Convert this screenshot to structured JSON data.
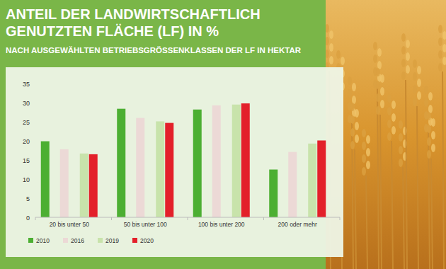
{
  "chart_data": {
    "type": "bar",
    "title": "ANTEIL DER LANDWIRTSCHAFTLICH GENUTZTEN FLÄCHE (LF) IN %",
    "subtitle": "NACH AUSGEWÄHLTEN BETRIEBSGRÖSSENKLASSEN DER LF IN HEKTAR",
    "categories": [
      "20 bis unter 50",
      "50 bis unter 100",
      "100 bis unter 200",
      "200 oder mehr"
    ],
    "series": [
      {
        "name": "2010",
        "color": "#4caf32",
        "values": [
          19.9,
          28.4,
          28.2,
          12.5
        ]
      },
      {
        "name": "2016",
        "color": "#ecd9d6",
        "values": [
          17.8,
          26.0,
          29.3,
          17.1
        ]
      },
      {
        "name": "2019",
        "color": "#c8e3ab",
        "values": [
          16.7,
          25.1,
          29.5,
          19.3
        ]
      },
      {
        "name": "2020",
        "color": "#e3202a",
        "values": [
          16.5,
          24.7,
          29.8,
          20.1
        ]
      }
    ],
    "ylim": [
      0,
      35
    ],
    "yticks": [
      0,
      5,
      10,
      15,
      20,
      25,
      30,
      35
    ],
    "grid": false,
    "legend": "bottom"
  }
}
